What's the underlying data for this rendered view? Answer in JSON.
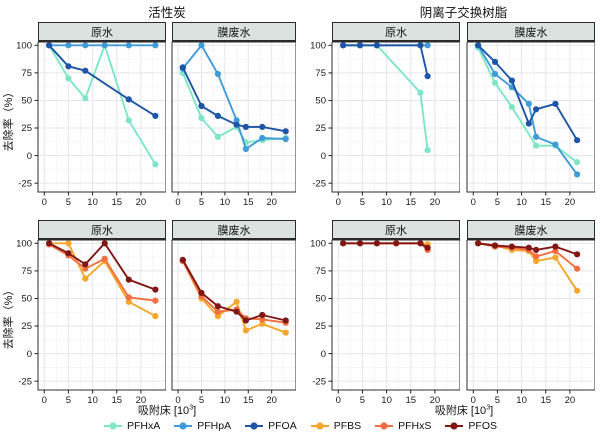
{
  "titles": {
    "left_group": "活性炭",
    "right_group": "阴离子交换树脂"
  },
  "axes": {
    "y_label": "去除率（%）",
    "x_label_prefix": "吸附床 [10",
    "x_label_sup": "3",
    "x_label_suffix": "]",
    "y_ticks": [
      100,
      75,
      50,
      25,
      0,
      -25
    ],
    "x_ticks": [
      0,
      5,
      10,
      15,
      20
    ],
    "ylim": [
      -25,
      100
    ],
    "xlim": [
      0,
      24
    ],
    "grid": "on"
  },
  "legend": [
    {
      "name": "PFHxA",
      "color": "#7EE6C5"
    },
    {
      "name": "PFHpA",
      "color": "#419BD9"
    },
    {
      "name": "PFOA",
      "color": "#1E55A6"
    },
    {
      "name": "PFBS",
      "color": "#F6A62B"
    },
    {
      "name": "PFHxS",
      "color": "#F26D3F"
    },
    {
      "name": "PFOS",
      "color": "#801715"
    }
  ],
  "chart_data": [
    {
      "type": "line",
      "group": "活性炭",
      "facet": "原水",
      "series": [
        {
          "name": "PFHxA",
          "x": [
            1,
            5,
            8.5,
            12.5,
            17.5,
            23
          ],
          "y": [
            100,
            70,
            52,
            100,
            32,
            -8
          ]
        },
        {
          "name": "PFHpA",
          "x": [
            1,
            5,
            8.5,
            12.5,
            17.5,
            23
          ],
          "y": [
            100,
            100,
            100,
            100,
            100,
            100
          ]
        },
        {
          "name": "PFOA",
          "x": [
            1,
            5,
            8.5,
            17.5,
            23
          ],
          "y": [
            100,
            81,
            77,
            51,
            36
          ]
        }
      ]
    },
    {
      "type": "line",
      "group": "活性炭",
      "facet": "膜废水",
      "series": [
        {
          "name": "PFHxA",
          "x": [
            1,
            5,
            8.5,
            12.5,
            14.5,
            18,
            23
          ],
          "y": [
            75,
            34,
            17,
            26,
            12,
            14,
            16
          ]
        },
        {
          "name": "PFHpA",
          "x": [
            1,
            5,
            8.5,
            12.5,
            14.5,
            18,
            23
          ],
          "y": [
            79,
            100,
            74,
            32,
            6,
            16,
            15
          ]
        },
        {
          "name": "PFOA",
          "x": [
            1,
            5,
            8.5,
            12.5,
            14.5,
            18,
            23
          ],
          "y": [
            80,
            45,
            36,
            28,
            26,
            26,
            22
          ]
        }
      ]
    },
    {
      "type": "line",
      "group": "阴离子交换树脂",
      "facet": "原水",
      "series": [
        {
          "name": "PFHxA",
          "x": [
            1,
            4.5,
            8,
            17,
            18.5
          ],
          "y": [
            100,
            100,
            100,
            57,
            5
          ]
        },
        {
          "name": "PFHpA",
          "x": [
            1,
            4.5,
            8,
            17,
            18.5
          ],
          "y": [
            100,
            100,
            100,
            100,
            100
          ]
        },
        {
          "name": "PFOA",
          "x": [
            1,
            4.5,
            8,
            17,
            18.5
          ],
          "y": [
            100,
            100,
            100,
            100,
            72
          ]
        }
      ]
    },
    {
      "type": "line",
      "group": "阴离子交换树脂",
      "facet": "膜废水",
      "series": [
        {
          "name": "PFHxA",
          "x": [
            1,
            4.5,
            8,
            13,
            17,
            21.5
          ],
          "y": [
            98,
            66,
            44,
            9,
            9,
            -6
          ]
        },
        {
          "name": "PFHpA",
          "x": [
            1,
            4.5,
            8,
            11.5,
            13,
            17,
            21.5
          ],
          "y": [
            100,
            74,
            62,
            47,
            17,
            10,
            -17
          ]
        },
        {
          "name": "PFOA",
          "x": [
            1,
            4.5,
            8,
            11.5,
            13,
            17,
            21.5
          ],
          "y": [
            100,
            85,
            68,
            29,
            42,
            47,
            14
          ]
        }
      ]
    },
    {
      "type": "line",
      "group": "活性炭",
      "facet": "原水",
      "series": [
        {
          "name": "PFBS",
          "x": [
            1,
            5,
            8.5,
            12.5,
            17.5,
            23
          ],
          "y": [
            100,
            100,
            68,
            84,
            47,
            34
          ]
        },
        {
          "name": "PFHxS",
          "x": [
            1,
            5,
            8.5,
            12.5,
            17.5,
            23
          ],
          "y": [
            99,
            89,
            77,
            86,
            51,
            48
          ]
        },
        {
          "name": "PFOS",
          "x": [
            1,
            5,
            8.5,
            12.5,
            17.5,
            23
          ],
          "y": [
            100,
            91,
            81,
            100,
            67,
            58
          ]
        }
      ]
    },
    {
      "type": "line",
      "group": "活性炭",
      "facet": "膜废水",
      "series": [
        {
          "name": "PFBS",
          "x": [
            1,
            5,
            8.5,
            12.5,
            14.5,
            18,
            23
          ],
          "y": [
            84,
            50,
            34,
            47,
            21,
            27,
            19
          ]
        },
        {
          "name": "PFHxS",
          "x": [
            1,
            5,
            8.5,
            12.5,
            14.5,
            18,
            23
          ],
          "y": [
            84,
            52,
            38,
            40,
            32,
            31,
            28
          ]
        },
        {
          "name": "PFOS",
          "x": [
            1,
            5,
            8.5,
            12.5,
            14.5,
            18,
            23
          ],
          "y": [
            85,
            55,
            43,
            38,
            30,
            35,
            30
          ]
        }
      ]
    },
    {
      "type": "line",
      "group": "阴离子交换树脂",
      "facet": "原水",
      "series": [
        {
          "name": "PFBS",
          "x": [
            1,
            4.5,
            8,
            12,
            17,
            18.5
          ],
          "y": [
            100,
            100,
            100,
            100,
            100,
            99
          ]
        },
        {
          "name": "PFHxS",
          "x": [
            1,
            4.5,
            8,
            12,
            17,
            18.5
          ],
          "y": [
            100,
            100,
            100,
            100,
            100,
            94
          ]
        },
        {
          "name": "PFOS",
          "x": [
            1,
            4.5,
            8,
            12,
            17,
            18.5
          ],
          "y": [
            100,
            100,
            100,
            100,
            100,
            96
          ]
        }
      ]
    },
    {
      "type": "line",
      "group": "阴离子交换树脂",
      "facet": "膜废水",
      "series": [
        {
          "name": "PFBS",
          "x": [
            1,
            4.5,
            8,
            11.5,
            13,
            17,
            21.5
          ],
          "y": [
            100,
            98,
            94,
            93,
            84,
            87,
            57
          ]
        },
        {
          "name": "PFHxS",
          "x": [
            1,
            4.5,
            8,
            11.5,
            13,
            17,
            21.5
          ],
          "y": [
            100,
            97,
            96,
            94,
            88,
            93,
            77
          ]
        },
        {
          "name": "PFOS",
          "x": [
            1,
            4.5,
            8,
            11.5,
            13,
            17,
            21.5
          ],
          "y": [
            100,
            98,
            97,
            96,
            94,
            97,
            90
          ]
        }
      ]
    }
  ]
}
